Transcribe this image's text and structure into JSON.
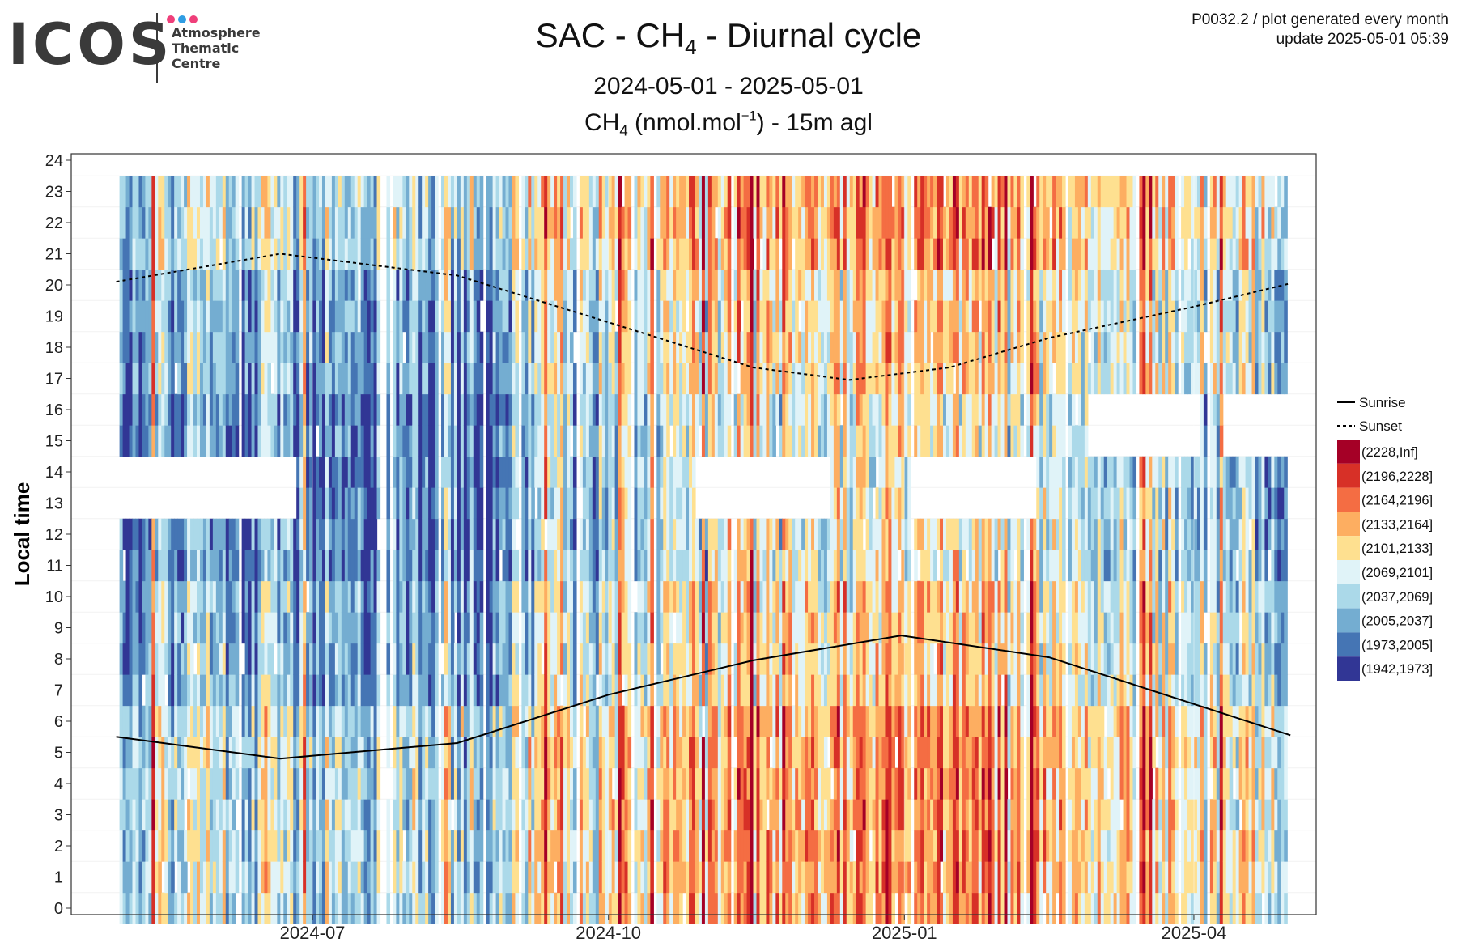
{
  "logo": {
    "wordmark": "ICOS",
    "lines": [
      "Atmosphere",
      "Thematic",
      "Centre"
    ],
    "dot_colors": [
      "#ef3f7a",
      "#2f9de3",
      "#ef3f7a"
    ]
  },
  "header": {
    "code_line": "P0032.2 / plot generated every month",
    "update_line": "update  2025-05-01 05:39"
  },
  "titles": {
    "main": {
      "pre": "SAC - CH",
      "sub": "4",
      "post": " - Diurnal cycle"
    },
    "period": "2024-05-01 - 2025-05-01",
    "variable": {
      "pre": "CH",
      "sub": "4",
      "mid": " (nmol.mol",
      "sup": "−1",
      "post": ") - 15m agl"
    }
  },
  "chart_data": {
    "type": "heatmap",
    "x_range": [
      "2024-05-01",
      "2025-05-01"
    ],
    "x_ticks": [
      "2024-07-01",
      "2024-10-01",
      "2025-01-01",
      "2025-04-01"
    ],
    "x_tick_labels": [
      "2024-07",
      "2024-10",
      "2025-01",
      "2025-04"
    ],
    "ylabel": "Local time",
    "y_range": [
      0,
      24
    ],
    "y_ticks": [
      0,
      1,
      2,
      3,
      4,
      5,
      6,
      7,
      8,
      9,
      10,
      11,
      12,
      13,
      14,
      15,
      16,
      17,
      18,
      19,
      20,
      21,
      22,
      23,
      24
    ],
    "grid": true,
    "legend_position": "right",
    "legend_lines": [
      {
        "label": "Sunrise",
        "style": "solid"
      },
      {
        "label": "Sunset",
        "style": "dashed"
      }
    ],
    "bins": [
      {
        "label": "(2228,Inf]",
        "color": "#a50026"
      },
      {
        "label": "(2196,2228]",
        "color": "#d73027"
      },
      {
        "label": "(2164,2196]",
        "color": "#f46d43"
      },
      {
        "label": "(2133,2164]",
        "color": "#fdae61"
      },
      {
        "label": "(2101,2133]",
        "color": "#fee090"
      },
      {
        "label": "(2069,2101]",
        "color": "#e0f3f8"
      },
      {
        "label": "(2037,2069]",
        "color": "#abd9e9"
      },
      {
        "label": "(2005,2037]",
        "color": "#74add1"
      },
      {
        "label": "(1973,2005]",
        "color": "#4575b4"
      },
      {
        "label": "(1942,1973]",
        "color": "#313695"
      }
    ],
    "sunrise": [
      {
        "date": "2024-05-01",
        "hour": 5.5
      },
      {
        "date": "2024-06-21",
        "hour": 4.8
      },
      {
        "date": "2024-08-15",
        "hour": 5.3
      },
      {
        "date": "2024-10-01",
        "hour": 6.85
      },
      {
        "date": "2024-11-15",
        "hour": 7.95
      },
      {
        "date": "2024-12-31",
        "hour": 8.75
      },
      {
        "date": "2025-02-15",
        "hour": 8.05
      },
      {
        "date": "2025-04-01",
        "hour": 6.55
      },
      {
        "date": "2025-05-01",
        "hour": 5.55
      }
    ],
    "sunset": [
      {
        "date": "2024-05-01",
        "hour": 20.1
      },
      {
        "date": "2024-06-21",
        "hour": 21.0
      },
      {
        "date": "2024-08-15",
        "hour": 20.3
      },
      {
        "date": "2024-10-01",
        "hour": 18.8
      },
      {
        "date": "2024-11-15",
        "hour": 17.35
      },
      {
        "date": "2024-12-15",
        "hour": 16.95
      },
      {
        "date": "2025-01-15",
        "hour": 17.35
      },
      {
        "date": "2025-02-15",
        "hour": 18.3
      },
      {
        "date": "2025-04-01",
        "hour": 19.3
      },
      {
        "date": "2025-05-01",
        "hour": 20.05
      }
    ],
    "missing_data": [
      {
        "start": "2024-05-01",
        "end": "2024-06-25",
        "hours": [
          13,
          14
        ]
      },
      {
        "start": "2024-10-28",
        "end": "2024-12-08",
        "hours": [
          13,
          14
        ]
      },
      {
        "start": "2025-01-03",
        "end": "2025-02-10",
        "hours": [
          13,
          14
        ]
      },
      {
        "start": "2025-02-27",
        "end": "2025-03-15",
        "hours": [
          15,
          16
        ]
      },
      {
        "start": "2025-03-16",
        "end": "2025-04-02",
        "hours": [
          15,
          16
        ]
      },
      {
        "start": "2025-04-10",
        "end": "2025-05-01",
        "hours": [
          15,
          16
        ]
      }
    ],
    "seasonal_level_by_month": {
      "2024-05": 2035,
      "2024-06": 2025,
      "2024-07": 2020,
      "2024-08": 2030,
      "2024-09": 2060,
      "2024-10": 2090,
      "2024-11": 2115,
      "2024-12": 2110,
      "2025-01": 2125,
      "2025-02": 2100,
      "2025-03": 2080,
      "2025-04": 2065
    }
  }
}
